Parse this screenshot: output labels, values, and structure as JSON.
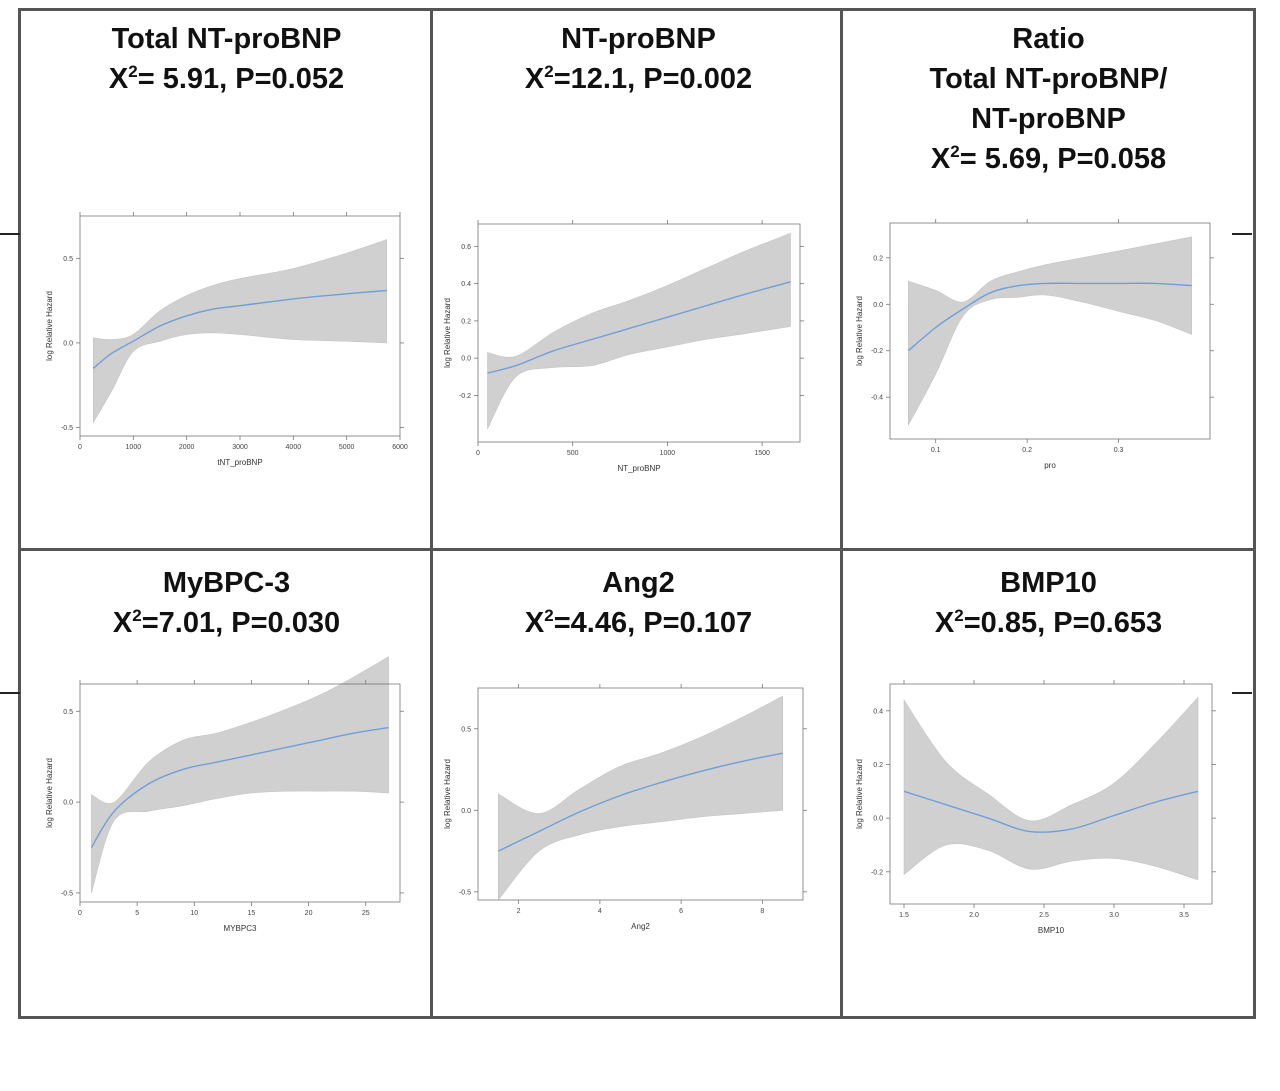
{
  "chart_data": [
    {
      "type": "line",
      "title": "Total NT-proBNP",
      "stat": {
        "chi2": "5.91",
        "p": "P=0.052",
        "sep": "= "
      },
      "xlabel": "tNT_proBNP",
      "ylabel": "log Relative Hazard",
      "xlim": [
        0,
        6000
      ],
      "ylim": [
        -0.55,
        0.75
      ],
      "xticks": [
        0,
        1000,
        2000,
        3000,
        4000,
        5000,
        6000
      ],
      "yticks": [
        -0.5,
        0.0,
        0.5
      ],
      "ytick_labels": [
        "-0.5",
        "0.0",
        "0.5"
      ],
      "series": [
        {
          "x": [
            250,
            600,
            1000,
            1500,
            2000,
            2500,
            3000,
            4000,
            5000,
            5750
          ],
          "y": [
            -0.15,
            -0.06,
            0.01,
            0.1,
            0.16,
            0.2,
            0.22,
            0.26,
            0.29,
            0.31
          ],
          "lower": [
            -0.47,
            -0.28,
            -0.05,
            0.01,
            0.05,
            0.06,
            0.05,
            0.02,
            0.01,
            0.0
          ],
          "upper": [
            0.03,
            0.02,
            0.05,
            0.19,
            0.28,
            0.34,
            0.38,
            0.44,
            0.53,
            0.61
          ]
        }
      ]
    },
    {
      "type": "line",
      "title": "NT-proBNP",
      "stat": {
        "chi2": "12.1",
        "p": "P=0.002",
        "sep": "="
      },
      "xlabel": "NT_proBNP",
      "ylabel": "log Relative Hazard",
      "xlim": [
        0,
        1700
      ],
      "ylim": [
        -0.45,
        0.72
      ],
      "xticks": [
        0,
        500,
        1000,
        1500
      ],
      "yticks": [
        -0.2,
        0.0,
        0.2,
        0.4,
        0.6
      ],
      "ytick_labels": [
        "-0.2",
        "0.0",
        "0.2",
        "0.4",
        "0.6"
      ],
      "series": [
        {
          "x": [
            50,
            200,
            400,
            600,
            800,
            1000,
            1200,
            1400,
            1650
          ],
          "y": [
            -0.08,
            -0.04,
            0.04,
            0.1,
            0.16,
            0.22,
            0.28,
            0.34,
            0.41
          ],
          "lower": [
            -0.38,
            -0.1,
            -0.05,
            -0.04,
            0.02,
            0.06,
            0.1,
            0.13,
            0.17
          ],
          "upper": [
            0.03,
            0.01,
            0.14,
            0.24,
            0.31,
            0.39,
            0.48,
            0.57,
            0.67
          ]
        }
      ]
    },
    {
      "type": "line",
      "title": "Ratio",
      "title_lines": [
        "Total NT-proBNP/",
        "NT-proBNP"
      ],
      "stat": {
        "chi2": "5.69",
        "p": "P=0.058",
        "sep": "= "
      },
      "xlabel": "pro",
      "ylabel": "log Relative Hazard",
      "xlim": [
        0.05,
        0.4
      ],
      "ylim": [
        -0.58,
        0.35
      ],
      "xticks": [
        0.1,
        0.2,
        0.3
      ],
      "xtick_labels": [
        "0.1",
        "0.2",
        "0.3"
      ],
      "yticks": [
        -0.4,
        -0.2,
        0.0,
        0.2
      ],
      "ytick_labels": [
        "-0.4",
        "-0.2",
        "0.0",
        "0.2"
      ],
      "series": [
        {
          "x": [
            0.07,
            0.1,
            0.13,
            0.16,
            0.19,
            0.22,
            0.26,
            0.3,
            0.34,
            0.38
          ],
          "y": [
            -0.2,
            -0.1,
            -0.02,
            0.05,
            0.08,
            0.09,
            0.09,
            0.09,
            0.09,
            0.08
          ],
          "lower": [
            -0.52,
            -0.3,
            -0.05,
            0.02,
            0.03,
            0.04,
            0.01,
            -0.03,
            -0.07,
            -0.13
          ],
          "upper": [
            0.1,
            0.06,
            0.01,
            0.1,
            0.14,
            0.17,
            0.2,
            0.23,
            0.26,
            0.29
          ]
        }
      ]
    },
    {
      "type": "line",
      "title": "MyBPC-3",
      "stat": {
        "chi2": "7.01",
        "p": "P=0.030",
        "sep": "="
      },
      "xlabel": "MYBPC3",
      "ylabel": "log Relative Hazard",
      "xlim": [
        0,
        28
      ],
      "ylim": [
        -0.55,
        0.65
      ],
      "xticks": [
        0,
        5,
        10,
        15,
        20,
        25
      ],
      "yticks": [
        -0.5,
        0.0,
        0.5
      ],
      "ytick_labels": [
        "-0.5",
        "0.0",
        "0.5"
      ],
      "series": [
        {
          "x": [
            1,
            3,
            6,
            9,
            12,
            15,
            18,
            21,
            24,
            27
          ],
          "y": [
            -0.25,
            -0.05,
            0.1,
            0.18,
            0.22,
            0.26,
            0.3,
            0.34,
            0.38,
            0.41
          ],
          "lower": [
            -0.5,
            -0.1,
            -0.05,
            -0.02,
            0.02,
            0.05,
            0.06,
            0.06,
            0.06,
            0.05
          ],
          "upper": [
            0.04,
            0.0,
            0.22,
            0.34,
            0.38,
            0.44,
            0.51,
            0.59,
            0.69,
            0.8
          ]
        }
      ]
    },
    {
      "type": "line",
      "title": "Ang2",
      "stat": {
        "chi2": "4.46",
        "p": "P=0.107",
        "sep": "="
      },
      "xlabel": "Ang2",
      "ylabel": "log Relative Hazard",
      "xlim": [
        1.0,
        9.0
      ],
      "ylim": [
        -0.55,
        0.75
      ],
      "xticks": [
        2,
        4,
        6,
        8
      ],
      "yticks": [
        -0.5,
        0.0,
        0.5
      ],
      "ytick_labels": [
        "-0.5",
        "0.0",
        "0.5"
      ],
      "series": [
        {
          "x": [
            1.5,
            2.5,
            3.5,
            4.5,
            5.5,
            6.5,
            7.5,
            8.5
          ],
          "y": [
            -0.25,
            -0.13,
            -0.01,
            0.09,
            0.17,
            0.24,
            0.3,
            0.35
          ],
          "lower": [
            -0.55,
            -0.25,
            -0.15,
            -0.1,
            -0.07,
            -0.04,
            -0.02,
            0.0
          ],
          "upper": [
            0.1,
            -0.02,
            0.13,
            0.27,
            0.35,
            0.45,
            0.57,
            0.7
          ]
        }
      ]
    },
    {
      "type": "line",
      "title": "BMP10",
      "stat": {
        "chi2": "0.85",
        "p": "P=0.653",
        "sep": "="
      },
      "xlabel": "BMP10",
      "ylabel": "log Relative Hazard",
      "xlim": [
        1.4,
        3.7
      ],
      "ylim": [
        -0.32,
        0.5
      ],
      "xticks": [
        1.5,
        2.0,
        2.5,
        3.0,
        3.5
      ],
      "xtick_labels": [
        "1.5",
        "2.0",
        "2.5",
        "3.0",
        "3.5"
      ],
      "yticks": [
        -0.2,
        0.0,
        0.2,
        0.4
      ],
      "ytick_labels": [
        "-0.2",
        "0.0",
        "0.2",
        "0.4"
      ],
      "series": [
        {
          "x": [
            1.5,
            1.8,
            2.1,
            2.4,
            2.7,
            3.0,
            3.3,
            3.6
          ],
          "y": [
            0.1,
            0.05,
            0.0,
            -0.05,
            -0.04,
            0.01,
            0.06,
            0.1
          ],
          "lower": [
            -0.21,
            -0.1,
            -0.12,
            -0.19,
            -0.16,
            -0.15,
            -0.18,
            -0.23
          ],
          "upper": [
            0.44,
            0.21,
            0.09,
            -0.01,
            0.05,
            0.13,
            0.28,
            0.45
          ]
        }
      ]
    }
  ],
  "colors": {
    "line": "#6f9fd8",
    "band": "#d0d0d0",
    "band_edge": "#c4c4c4",
    "axis": "#777777"
  }
}
